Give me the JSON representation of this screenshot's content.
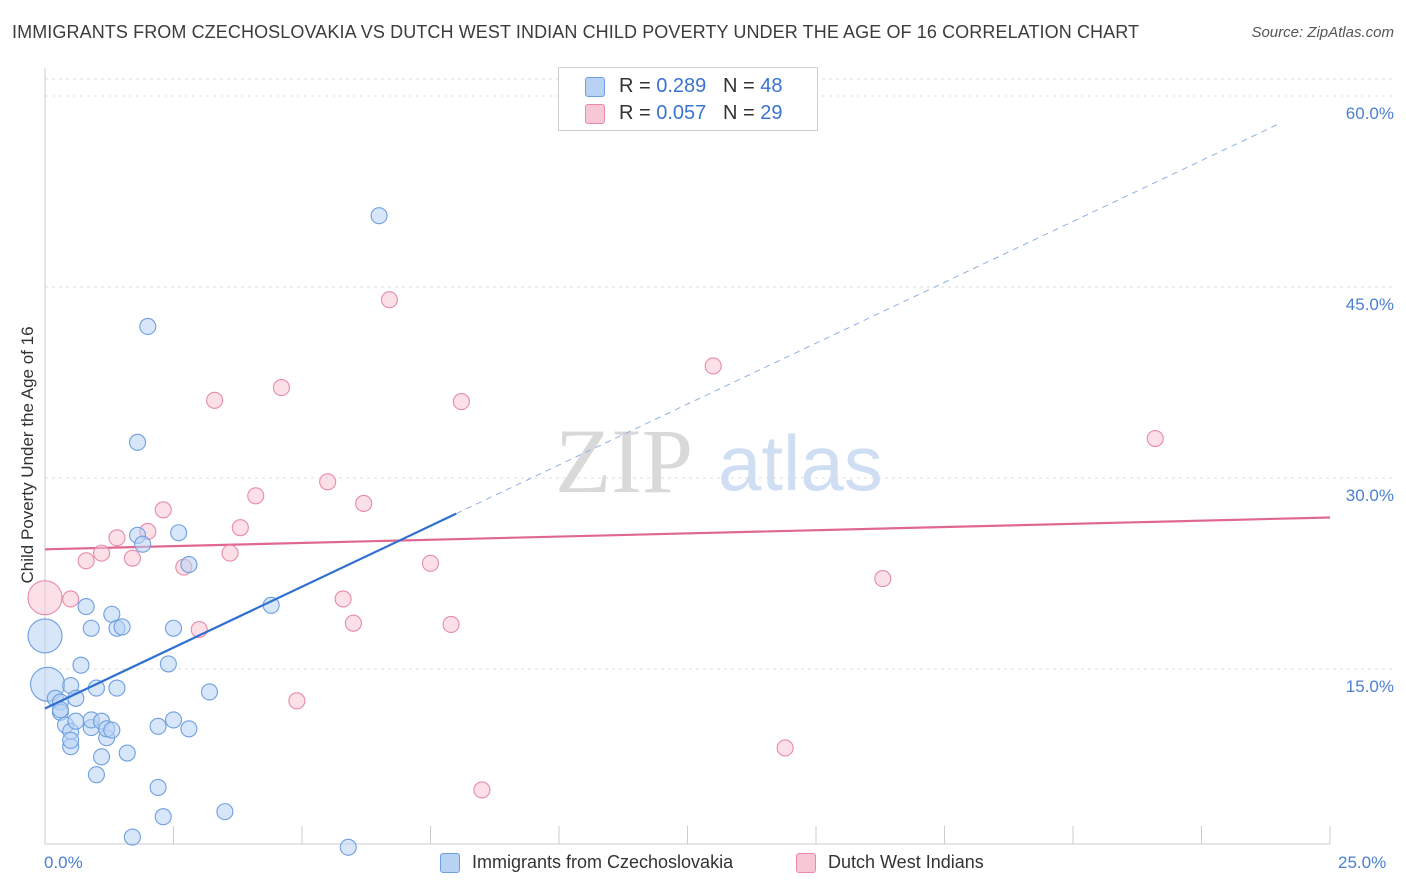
{
  "header": {
    "title": "IMMIGRANTS FROM CZECHOSLOVAKIA VS DUTCH WEST INDIAN CHILD POVERTY UNDER THE AGE OF 16 CORRELATION CHART",
    "source": "Source: ZipAtlas.com"
  },
  "watermark": {
    "zip": "ZIP",
    "atlas": "atlas"
  },
  "legend_top": {
    "r_label": "R =",
    "n_label": "N =",
    "series1": {
      "r": "0.289",
      "n": "48"
    },
    "series2": {
      "r": "0.057",
      "n": "29"
    }
  },
  "colors": {
    "blue_fill": "#b8d2f4",
    "blue_stroke": "#6e9fe0",
    "blue_line": "#2f6fd0",
    "pink_fill": "#f8c7d6",
    "pink_stroke": "#e88aa8",
    "pink_line": "#e06890"
  },
  "chart_data": {
    "type": "scatter",
    "title": "IMMIGRANTS FROM CZECHOSLOVAKIA VS DUTCH WEST INDIAN CHILD POVERTY UNDER THE AGE OF 16 CORRELATION CHART",
    "xlabel": "",
    "ylabel": "Child Poverty Under the Age of 16",
    "xlim": [
      0,
      25
    ],
    "ylim": [
      0,
      60
    ],
    "x_tick_labels": {
      "min": "0.0%",
      "max": "25.0%"
    },
    "y_ticks": [
      {
        "value": 15,
        "label": "15.0%"
      },
      {
        "value": 30,
        "label": "30.0%"
      },
      {
        "value": 45,
        "label": "45.0%"
      },
      {
        "value": 60,
        "label": "60.0%"
      }
    ],
    "series": [
      {
        "name": "Immigrants from Czechoslovakia",
        "r": 0.289,
        "n": 48,
        "trend": {
          "x0": 0.0,
          "y0": 11.9,
          "x1": 8.0,
          "y1": 27.2,
          "dash_to_x": 24.0,
          "dash_to_y": 57.8
        },
        "points": [
          {
            "x": 0.0,
            "y": 17.6,
            "big": true
          },
          {
            "x": 0.05,
            "y": 13.8,
            "big": true
          },
          {
            "x": 0.2,
            "y": 12.7
          },
          {
            "x": 0.3,
            "y": 12.4
          },
          {
            "x": 0.3,
            "y": 11.6
          },
          {
            "x": 0.3,
            "y": 11.8
          },
          {
            "x": 0.4,
            "y": 10.6
          },
          {
            "x": 0.5,
            "y": 10.1
          },
          {
            "x": 0.5,
            "y": 8.9
          },
          {
            "x": 0.5,
            "y": 13.7
          },
          {
            "x": 0.5,
            "y": 9.4
          },
          {
            "x": 0.6,
            "y": 12.7
          },
          {
            "x": 0.6,
            "y": 10.9
          },
          {
            "x": 0.7,
            "y": 15.3
          },
          {
            "x": 0.8,
            "y": 19.9
          },
          {
            "x": 0.9,
            "y": 10.4
          },
          {
            "x": 0.9,
            "y": 18.2
          },
          {
            "x": 0.9,
            "y": 11.0
          },
          {
            "x": 1.0,
            "y": 6.7
          },
          {
            "x": 1.0,
            "y": 13.5
          },
          {
            "x": 1.1,
            "y": 8.1
          },
          {
            "x": 1.1,
            "y": 10.9
          },
          {
            "x": 1.2,
            "y": 9.6
          },
          {
            "x": 1.2,
            "y": 10.3
          },
          {
            "x": 1.3,
            "y": 19.3
          },
          {
            "x": 1.3,
            "y": 10.2
          },
          {
            "x": 1.4,
            "y": 13.5
          },
          {
            "x": 1.4,
            "y": 18.2
          },
          {
            "x": 1.5,
            "y": 18.3
          },
          {
            "x": 1.6,
            "y": 8.4
          },
          {
            "x": 1.7,
            "y": 1.8
          },
          {
            "x": 1.8,
            "y": 32.8
          },
          {
            "x": 1.8,
            "y": 25.5
          },
          {
            "x": 1.9,
            "y": 24.8
          },
          {
            "x": 2.0,
            "y": 41.9
          },
          {
            "x": 2.2,
            "y": 5.7
          },
          {
            "x": 2.2,
            "y": 10.5
          },
          {
            "x": 2.3,
            "y": 3.4
          },
          {
            "x": 2.4,
            "y": 15.4
          },
          {
            "x": 2.5,
            "y": 18.2
          },
          {
            "x": 2.5,
            "y": 11.0
          },
          {
            "x": 2.6,
            "y": 25.7
          },
          {
            "x": 2.8,
            "y": 10.3
          },
          {
            "x": 2.8,
            "y": 23.2
          },
          {
            "x": 3.2,
            "y": 13.2
          },
          {
            "x": 3.5,
            "y": 3.8
          },
          {
            "x": 4.4,
            "y": 20.0
          },
          {
            "x": 5.9,
            "y": 1.0
          },
          {
            "x": 6.5,
            "y": 50.6
          }
        ]
      },
      {
        "name": "Dutch West Indians",
        "r": 0.057,
        "n": 29,
        "trend": {
          "x0": 0.0,
          "y0": 24.4,
          "x1": 25.0,
          "y1": 26.9
        },
        "points": [
          {
            "x": 0.0,
            "y": 20.6,
            "big": true
          },
          {
            "x": 0.5,
            "y": 20.5
          },
          {
            "x": 0.8,
            "y": 23.5
          },
          {
            "x": 1.1,
            "y": 24.1
          },
          {
            "x": 1.4,
            "y": 25.3
          },
          {
            "x": 1.7,
            "y": 23.7
          },
          {
            "x": 2.0,
            "y": 25.8
          },
          {
            "x": 2.3,
            "y": 27.5
          },
          {
            "x": 2.7,
            "y": 23.0
          },
          {
            "x": 3.0,
            "y": 18.1
          },
          {
            "x": 3.3,
            "y": 36.1
          },
          {
            "x": 3.6,
            "y": 24.1
          },
          {
            "x": 3.8,
            "y": 26.1
          },
          {
            "x": 4.1,
            "y": 28.6
          },
          {
            "x": 4.6,
            "y": 37.1
          },
          {
            "x": 4.9,
            "y": 12.5
          },
          {
            "x": 5.5,
            "y": 29.7
          },
          {
            "x": 5.8,
            "y": 20.5
          },
          {
            "x": 6.0,
            "y": 18.6
          },
          {
            "x": 6.2,
            "y": 28.0
          },
          {
            "x": 6.7,
            "y": 44.0
          },
          {
            "x": 7.5,
            "y": 23.3
          },
          {
            "x": 7.9,
            "y": 18.5
          },
          {
            "x": 8.1,
            "y": 36.0
          },
          {
            "x": 8.5,
            "y": 5.5
          },
          {
            "x": 13.0,
            "y": 38.8
          },
          {
            "x": 14.4,
            "y": 8.8
          },
          {
            "x": 16.3,
            "y": 22.1
          },
          {
            "x": 21.6,
            "y": 33.1
          }
        ]
      }
    ],
    "legend": [
      "Immigrants from Czechoslovakia",
      "Dutch West Indians"
    ],
    "legend_position": "bottom"
  }
}
